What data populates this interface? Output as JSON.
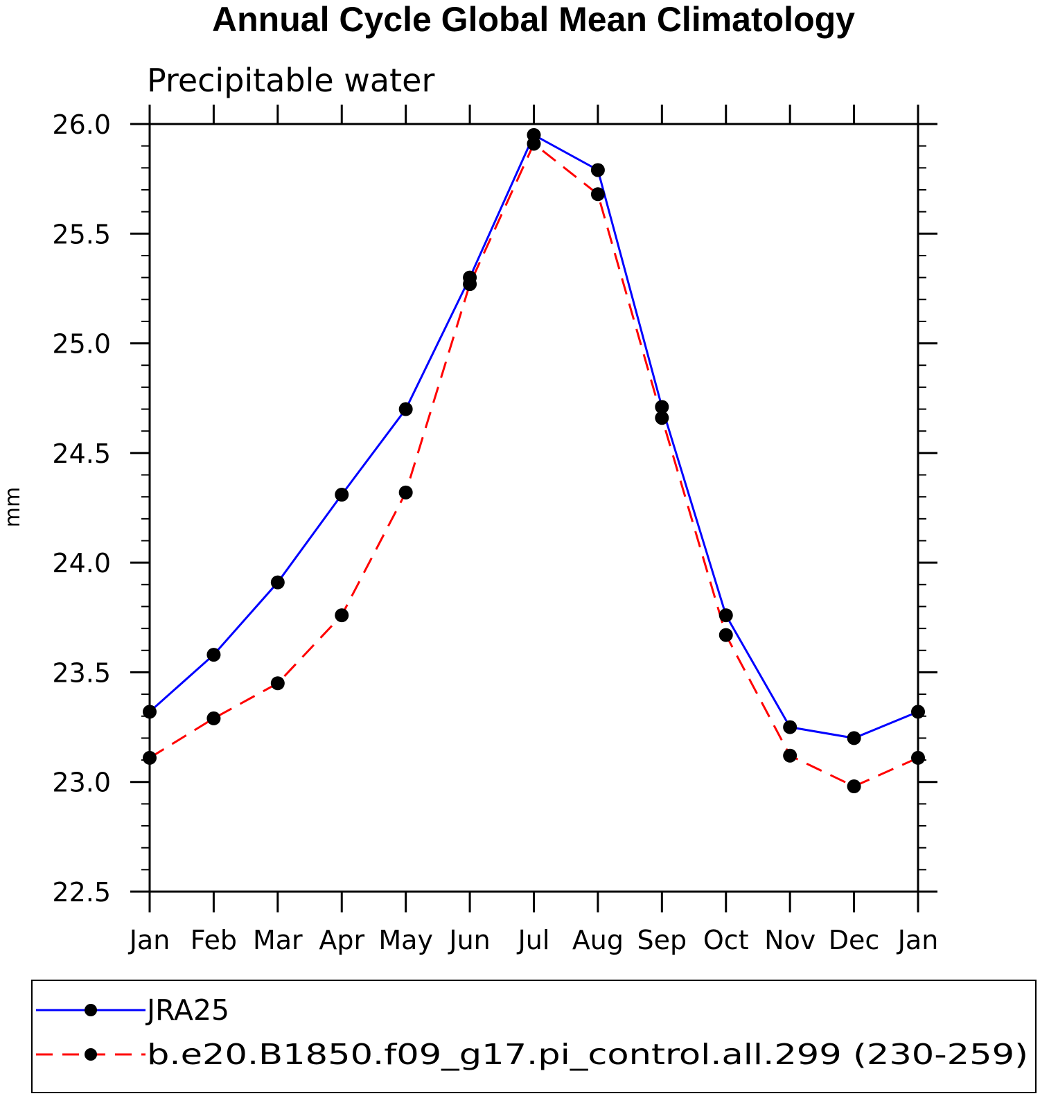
{
  "chart_data": {
    "type": "line",
    "title": "Annual Cycle Global Mean Climatology",
    "subtitle": "Precipitable water",
    "xlabel": "",
    "ylabel": "mm",
    "categories": [
      "Jan",
      "Feb",
      "Mar",
      "Apr",
      "May",
      "Jun",
      "Jul",
      "Aug",
      "Sep",
      "Oct",
      "Nov",
      "Dec",
      "Jan"
    ],
    "ylim": [
      22.5,
      26.0
    ],
    "yticks": [
      22.5,
      23.0,
      23.5,
      24.0,
      24.5,
      25.0,
      25.5,
      26.0
    ],
    "ytick_labels": [
      "22.5",
      "23.0",
      "23.5",
      "24.0",
      "24.5",
      "25.0",
      "25.5",
      "26.0"
    ],
    "grid": false,
    "legend_position": "bottom",
    "series": [
      {
        "name": "JRA25",
        "color": "#0000ff",
        "dash": "solid",
        "marker": "filled-circle",
        "values": [
          23.32,
          23.58,
          23.91,
          24.31,
          24.7,
          25.3,
          25.95,
          25.79,
          24.71,
          23.76,
          23.25,
          23.2,
          23.32
        ]
      },
      {
        "name": "b.e20.B1850.f09_g17.pi_control.all.299 (230-259)",
        "color": "#ff0000",
        "dash": "dashed",
        "marker": "filled-circle",
        "values": [
          23.11,
          23.29,
          23.45,
          23.76,
          24.32,
          25.27,
          25.91,
          25.68,
          24.66,
          23.67,
          23.12,
          22.98,
          23.11
        ]
      }
    ]
  }
}
